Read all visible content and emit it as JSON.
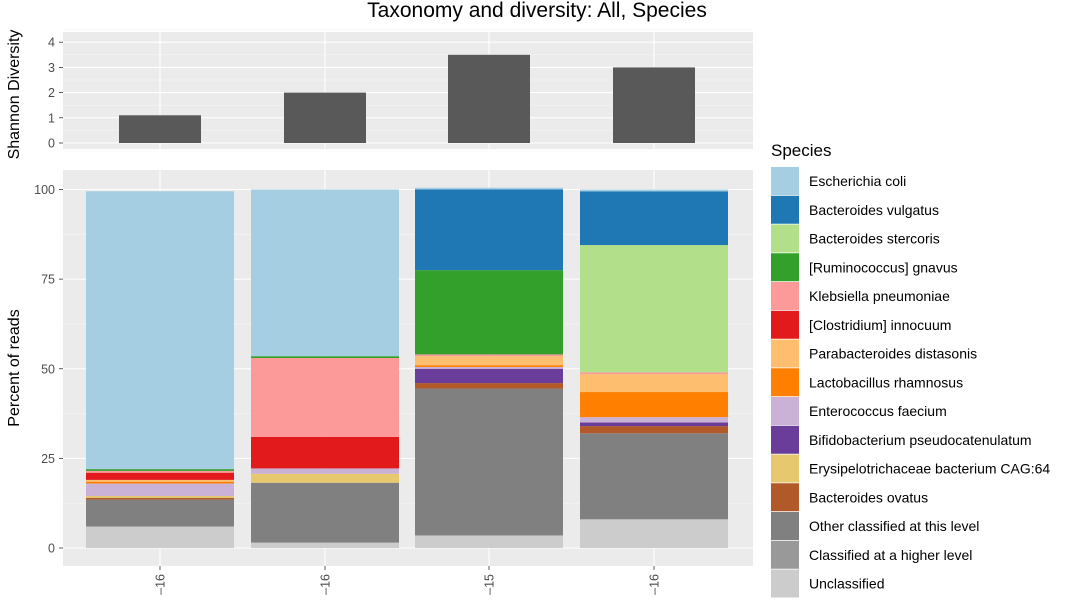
{
  "title": "Taxonomy and diversity: All, Species",
  "legend_title": "Species",
  "chart_data": [
    {
      "type": "bar",
      "ylabel": "Shannon Diversity",
      "ylim": [
        0,
        4.5
      ],
      "yticks": [
        0,
        1,
        2,
        3,
        4
      ],
      "x_tick_labels": [
        "–16",
        "–16",
        "–15",
        "–16"
      ],
      "values": [
        1.1,
        2.0,
        3.5,
        3.0
      ],
      "bar_color": "#595959",
      "grid": true
    },
    {
      "type": "bar",
      "stacked": true,
      "ylabel": "Percent of reads",
      "ylim": [
        0,
        100
      ],
      "yticks": [
        0,
        25,
        50,
        75,
        100
      ],
      "x_tick_labels": [
        "–16",
        "–16",
        "–15",
        "–16"
      ],
      "grid": true,
      "series": [
        {
          "name": "Unclassified",
          "color": "#cccccc",
          "values": [
            6,
            1.5,
            3.5,
            8
          ]
        },
        {
          "name": "Classified at a higher level",
          "color": "#999999",
          "values": [
            0,
            0,
            0,
            0
          ]
        },
        {
          "name": "Other classified at this level",
          "color": "#808080",
          "values": [
            7.5,
            16.7,
            41,
            24
          ]
        },
        {
          "name": "Bacteroides ovatus",
          "color": "#b15928",
          "values": [
            0.5,
            0,
            1.5,
            2
          ]
        },
        {
          "name": "Erysipelotrichaceae bacterium CAG:64",
          "color": "#e6c86e",
          "values": [
            0.5,
            2.5,
            0,
            0
          ]
        },
        {
          "name": "Bifidobacterium pseudocatenulatum",
          "color": "#6a3d9a",
          "values": [
            0,
            0,
            4,
            1
          ]
        },
        {
          "name": "Enterococcus faecium",
          "color": "#cab2d6",
          "values": [
            3.5,
            1.5,
            0.5,
            1.5
          ]
        },
        {
          "name": "Lactobacillus rhamnosus",
          "color": "#ff7f00",
          "values": [
            0.5,
            0,
            0.5,
            7
          ]
        },
        {
          "name": "Parabacteroides distasonis",
          "color": "#fdbf6f",
          "values": [
            0.5,
            0,
            2.5,
            5
          ]
        },
        {
          "name": "[Clostridium] innocuum",
          "color": "#e31a1c",
          "values": [
            2,
            8.8,
            0,
            0
          ]
        },
        {
          "name": "Klebsiella pneumoniae",
          "color": "#fb9a99",
          "values": [
            0.5,
            22,
            0.5,
            0.5
          ]
        },
        {
          "name": "[Ruminococcus] gnavus",
          "color": "#33a02c",
          "values": [
            0.5,
            0.5,
            23.5,
            0
          ]
        },
        {
          "name": "Bacteroides stercoris",
          "color": "#b2df8a",
          "values": [
            0,
            0,
            0,
            35.5
          ]
        },
        {
          "name": "Bacteroides vulgatus",
          "color": "#1f78b4",
          "values": [
            0,
            0,
            22.5,
            15
          ]
        },
        {
          "name": "Escherichia coli",
          "color": "#a6cee3",
          "values": [
            77.5,
            46.5,
            0.5,
            0.5
          ]
        }
      ],
      "legend_order": [
        "Escherichia coli",
        "Bacteroides vulgatus",
        "Bacteroides stercoris",
        "[Ruminococcus] gnavus",
        "Klebsiella pneumoniae",
        "[Clostridium] innocuum",
        "Parabacteroides distasonis",
        "Lactobacillus rhamnosus",
        "Enterococcus faecium",
        "Bifidobacterium pseudocatenulatum",
        "Erysipelotrichaceae bacterium CAG:64",
        "Bacteroides ovatus",
        "Other classified at this level",
        "Classified at a higher level",
        "Unclassified"
      ],
      "legend_position": "right"
    }
  ]
}
